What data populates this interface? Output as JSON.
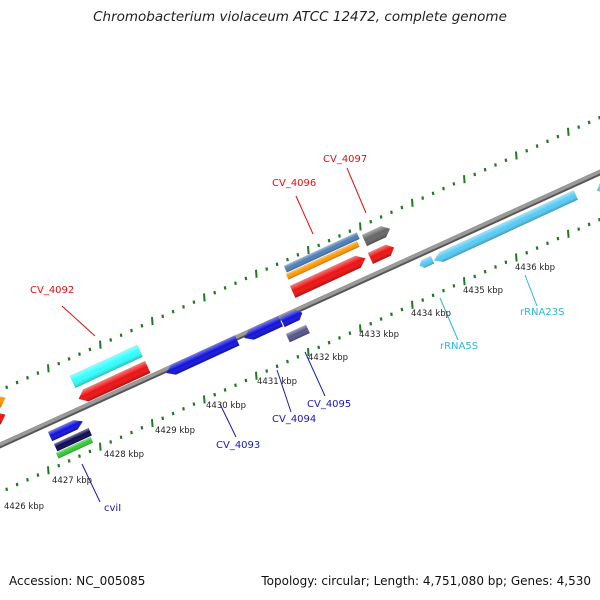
{
  "title": "Chromobacterium violaceum ATCC 12472, complete genome",
  "footer": {
    "accession": "Accession: NC_005085",
    "topology": "Topology: circular; Length: 4,751,080 bp; Genes: 4,530"
  },
  "colors": {
    "backbone": "#8c8c8c",
    "ticks": "#1f7a1f",
    "label_red": "#dd1111",
    "label_blue": "#1a1aa8",
    "label_cyan": "#2bb8d0",
    "cds_red": "#ee1111",
    "cds_cyan": "#33ffff",
    "cds_orange": "#ff9900",
    "cds_blue": "#1212dd",
    "cds_navy": "#0a0a55",
    "cds_green": "#33cc33",
    "cds_gray": "#666666",
    "cds_steel": "#4d7fb8",
    "cds_slate": "#55558a",
    "rna_skyblue": "#55ccf5"
  },
  "position_labels": [
    {
      "id": "4426",
      "text": "4426 kbp"
    },
    {
      "id": "4427",
      "text": "4427 kbp"
    },
    {
      "id": "4428",
      "text": "4428 kbp"
    },
    {
      "id": "4429",
      "text": "4429 kbp"
    },
    {
      "id": "4430",
      "text": "4430 kbp"
    },
    {
      "id": "4431",
      "text": "4431 kbp"
    },
    {
      "id": "4432",
      "text": "4432 kbp"
    },
    {
      "id": "4433",
      "text": "4433 kbp"
    },
    {
      "id": "4434",
      "text": "4434 kbp"
    },
    {
      "id": "4435",
      "text": "4435 kbp"
    },
    {
      "id": "4436",
      "text": "4436 kbp"
    }
  ],
  "gene_labels": [
    {
      "id": "cv4092",
      "text": "CV_4092"
    },
    {
      "id": "cv4096",
      "text": "CV_4096"
    },
    {
      "id": "cv4097",
      "text": "CV_4097"
    },
    {
      "id": "cv4093",
      "text": "CV_4093"
    },
    {
      "id": "cv4094",
      "text": "CV_4094"
    },
    {
      "id": "cv4095",
      "text": "CV_4095"
    },
    {
      "id": "cvil",
      "text": "cviI"
    },
    {
      "id": "rrna5s",
      "text": "rRNA5S"
    },
    {
      "id": "rrna23s",
      "text": "rRNA23S"
    }
  ]
}
